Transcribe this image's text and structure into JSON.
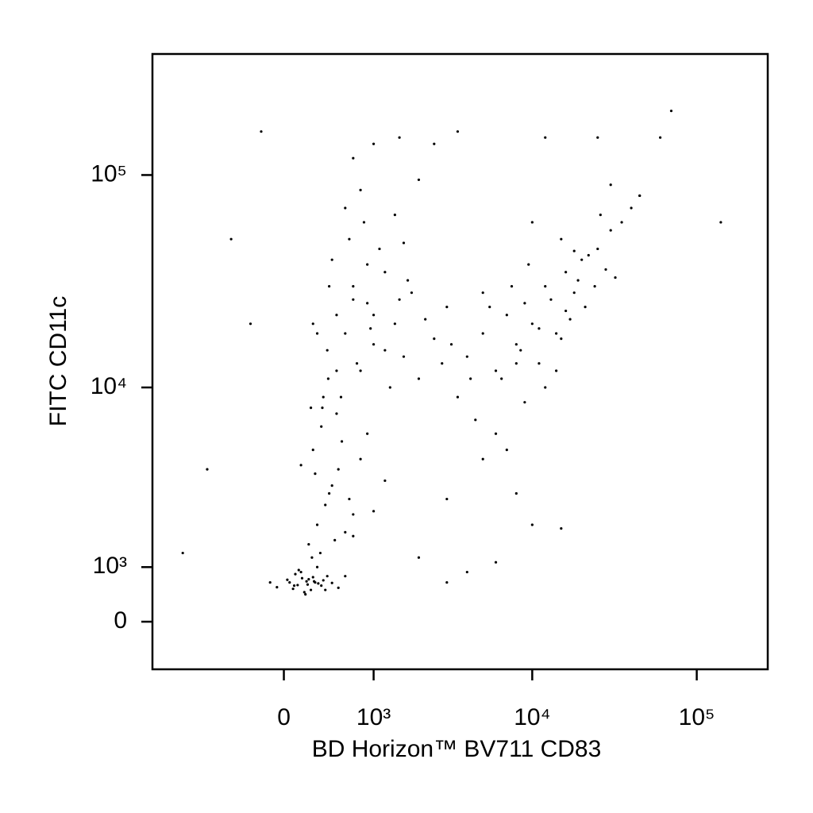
{
  "chart_data": {
    "type": "scatter",
    "x_label": "BD Horizon™ BV711 CD83",
    "y_label": "FITC CD11c",
    "xscale": "biexponential",
    "yscale": "biexponential",
    "xlim": [
      -1900,
      270000
    ],
    "ylim": [
      -860,
      370000
    ],
    "xticks": [
      0,
      {
        "value": 1000,
        "label": "10³"
      },
      {
        "value": 10000,
        "label": "10⁴"
      },
      {
        "value": 100000,
        "label": "10⁵"
      }
    ],
    "yticks": [
      0,
      {
        "value": 1000,
        "label": "10³"
      },
      {
        "value": 10000,
        "label": "10⁴"
      },
      {
        "value": 100000,
        "label": "10⁵"
      }
    ],
    "color": "#000000",
    "x": [
      50,
      120,
      200,
      260,
      310,
      150,
      80,
      220,
      340,
      400,
      180,
      280,
      30,
      -60,
      100,
      240,
      300,
      360,
      450,
      520,
      160,
      210,
      130,
      270,
      190,
      -120,
      380,
      600,
      90,
      250,
      220,
      300,
      380,
      450,
      520,
      600,
      700,
      260,
      340,
      420,
      500,
      650,
      800,
      900,
      280,
      360,
      480,
      560,
      1000,
      1200,
      240,
      330,
      410,
      700,
      150,
      400,
      500,
      600,
      700,
      800,
      900,
      1000,
      1200,
      1400,
      1600,
      1800,
      2000,
      2500,
      3000,
      450,
      550,
      650,
      750,
      850,
      950,
      1100,
      1300,
      1500,
      1700,
      2200,
      350,
      300,
      600,
      900,
      1200,
      500,
      700,
      800,
      1000,
      1600,
      2800,
      420,
      1400,
      260,
      2000,
      3500,
      4000,
      5000,
      6000,
      7000,
      8000,
      9000,
      10000,
      12000,
      14000,
      16000,
      18000,
      20000,
      25000,
      30000,
      35000,
      4500,
      5500,
      6500,
      7500,
      8500,
      9500,
      11000,
      13000,
      15000,
      17000,
      19000,
      22000,
      28000,
      40000,
      3200,
      6000,
      9000,
      12000,
      15000,
      21000,
      26000,
      32000,
      45000,
      11000,
      7000,
      5000,
      14000,
      24000,
      18000,
      8000,
      10000,
      30000,
      16000,
      4200,
      -1200,
      -800,
      -500,
      -300,
      1500,
      2500,
      3000,
      4000,
      6000,
      8000,
      3500,
      12000,
      60000,
      70000,
      140000,
      45000,
      10000,
      2000,
      5000,
      3000,
      1000,
      -200,
      15000,
      700,
      25000
    ],
    "values": [
      700,
      650,
      720,
      800,
      680,
      900,
      580,
      760,
      640,
      820,
      520,
      700,
      750,
      610,
      860,
      560,
      1000,
      740,
      690,
      600,
      780,
      660,
      940,
      720,
      480,
      700,
      560,
      820,
      640,
      1200,
      1500,
      2000,
      2600,
      3300,
      4000,
      1800,
      2300,
      5000,
      6500,
      3000,
      7500,
      2800,
      4500,
      6000,
      3800,
      9000,
      1600,
      5500,
      2400,
      3500,
      8000,
      1300,
      11000,
      1700,
      4200,
      15000,
      22000,
      18000,
      30000,
      12000,
      25000,
      16000,
      35000,
      20000,
      14000,
      28000,
      11000,
      17000,
      24000,
      40000,
      9000,
      50000,
      13000,
      60000,
      19000,
      45000,
      10000,
      26000,
      32000,
      21000,
      8000,
      18000,
      70000,
      38000,
      15000,
      12000,
      26000,
      85000,
      22000,
      48000,
      13000,
      30000,
      65000,
      20000,
      95000,
      9000,
      14000,
      18000,
      12000,
      22000,
      16000,
      25000,
      20000,
      30000,
      18000,
      35000,
      28000,
      40000,
      45000,
      55000,
      60000,
      7000,
      24000,
      11000,
      30000,
      15000,
      38000,
      13000,
      26000,
      50000,
      21000,
      32000,
      42000,
      36000,
      70000,
      16000,
      6000,
      8500,
      10000,
      17000,
      24000,
      65000,
      33000,
      80000,
      19000,
      5000,
      28000,
      12000,
      30000,
      44000,
      13000,
      60000,
      90000,
      23000,
      11000,
      1300,
      4000,
      50000,
      20000,
      150000,
      140000,
      2800,
      900,
      1100,
      3000,
      160000,
      150000,
      150000,
      200000,
      60000,
      80000,
      2000,
      1200,
      4500,
      700,
      140000,
      160000,
      1900,
      120000,
      150000
    ]
  }
}
